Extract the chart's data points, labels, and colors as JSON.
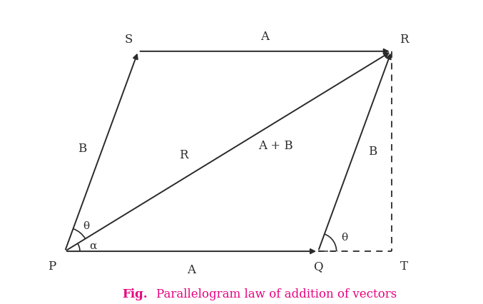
{
  "P": [
    0.0,
    0.0
  ],
  "Q": [
    3.8,
    0.0
  ],
  "S": [
    1.1,
    3.0
  ],
  "R": [
    4.9,
    3.0
  ],
  "T": [
    4.9,
    0.0
  ],
  "bg_color": "#ffffff",
  "line_color": "#2a2a2a",
  "caption_color": "#e8007f",
  "label_A_bottom": "A",
  "label_A_top": "A",
  "label_B_left": "B",
  "label_B_right": "B",
  "label_R_diag": "R",
  "label_AB_diag": "A + B",
  "label_P": "P",
  "label_Q": "Q",
  "label_S": "S",
  "label_R_pt": "R",
  "label_T": "T",
  "label_theta_P": "θ",
  "label_alpha_P": "α",
  "label_theta_Q": "θ",
  "xlim": [
    -0.55,
    5.85
  ],
  "ylim": [
    -0.72,
    3.75
  ],
  "fig_width": 6.77,
  "fig_height": 4.27,
  "dpi": 100
}
